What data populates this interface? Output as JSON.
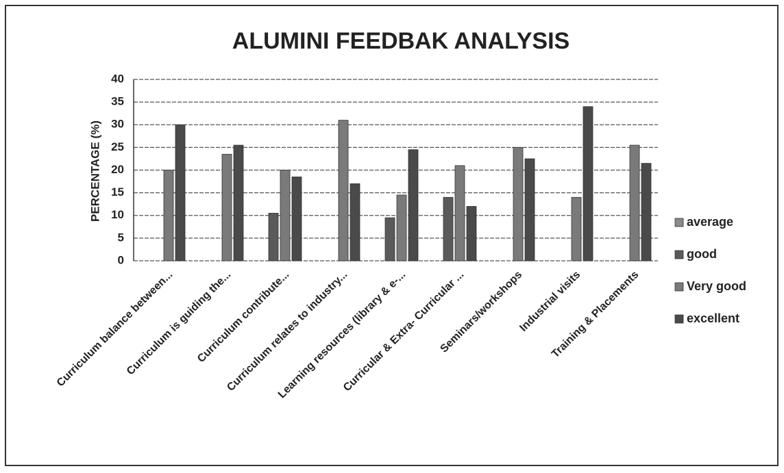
{
  "chart_data": {
    "type": "bar",
    "title": "ALUMINI FEEDBAK ANALYSIS",
    "y_label": "PERCENTAGE (%)",
    "categories": [
      "Curriculum balance between...",
      "Curriculum is guiding the...",
      "Curriculum contribute...",
      "Curriculum relates to industry...",
      "Learning resources (library & e-...",
      "Curricular & Extra- Curricular ...",
      "Seminars/workshops",
      "Industrial visits",
      "Training & Placements"
    ],
    "series": [
      {
        "name": "average",
        "color": "#8a8a8a",
        "values": [
          0,
          0,
          0,
          0,
          0,
          0,
          0,
          0,
          0
        ]
      },
      {
        "name": "good",
        "color": "#5a5a5a",
        "values": [
          0,
          0,
          10.5,
          0,
          9.5,
          14,
          0,
          0,
          0
        ]
      },
      {
        "name": "Very good",
        "color": "#7a7a7a",
        "values": [
          20,
          23.5,
          20,
          31,
          14.5,
          21,
          25,
          14,
          25.5
        ]
      },
      {
        "name": "excellent",
        "color": "#4a4a4a",
        "values": [
          30,
          25.5,
          18.5,
          17,
          24.5,
          12,
          22.5,
          34,
          21.5
        ]
      }
    ],
    "ylim": [
      0,
      40
    ],
    "yticks": [
      0,
      5,
      10,
      15,
      20,
      25,
      30,
      35,
      40
    ],
    "grid": true,
    "legend": "right"
  }
}
